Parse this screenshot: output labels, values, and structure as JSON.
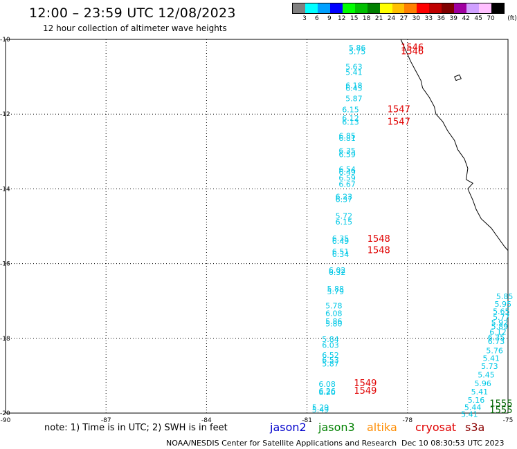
{
  "header": {
    "title": "12:00 – 23:59 UTC 12/08/2023",
    "subtitle": "12 hour collection of altimeter wave heights"
  },
  "legend": {
    "unit": "(ft)",
    "bins": [
      {
        "label": "3",
        "color": "#808080"
      },
      {
        "label": "6",
        "color": "#00ffff"
      },
      {
        "label": "9",
        "color": "#00a0ff"
      },
      {
        "label": "12",
        "color": "#0000ff"
      },
      {
        "label": "15",
        "color": "#00ff00"
      },
      {
        "label": "18",
        "color": "#00c000"
      },
      {
        "label": "21",
        "color": "#008000"
      },
      {
        "label": "24",
        "color": "#ffff00"
      },
      {
        "label": "27",
        "color": "#ffc000"
      },
      {
        "label": "30",
        "color": "#ff8000"
      },
      {
        "label": "33",
        "color": "#ff0000"
      },
      {
        "label": "36",
        "color": "#c00000"
      },
      {
        "label": "39",
        "color": "#800000"
      },
      {
        "label": "42",
        "color": "#a000a0"
      },
      {
        "label": "45",
        "color": "#d0a0ff"
      },
      {
        "label": "70",
        "color": "#ffc0ff"
      },
      {
        "label": "",
        "color": "#000000"
      }
    ]
  },
  "axes": {
    "lat_labels": [
      "-10",
      "-12",
      "-14",
      "-16",
      "-18",
      "-20"
    ],
    "lon_labels": [
      "-90",
      "-87",
      "-84",
      "-81",
      "-78",
      "-75"
    ],
    "lat_values": [
      -10,
      -12,
      -14,
      -16,
      -18,
      -20
    ],
    "lon_values": [
      -90,
      -87,
      -84,
      -81,
      -78,
      -75
    ]
  },
  "map_data": {
    "extent": {
      "lon": [
        -90,
        -75
      ],
      "lat": [
        -20,
        -10
      ]
    },
    "wave_heights": [
      {
        "lon": -79.5,
        "lat": -10.3,
        "text": "5.86"
      },
      {
        "lon": -79.5,
        "lat": -10.4,
        "text": "5.75"
      },
      {
        "lon": -79.6,
        "lat": -10.8,
        "text": "5.63"
      },
      {
        "lon": -79.6,
        "lat": -10.95,
        "text": "5.41"
      },
      {
        "lon": -79.6,
        "lat": -11.3,
        "text": "6.18"
      },
      {
        "lon": -79.6,
        "lat": -11.38,
        "text": "6.45"
      },
      {
        "lon": -79.6,
        "lat": -11.65,
        "text": "5.87"
      },
      {
        "lon": -79.7,
        "lat": -11.95,
        "text": "6.15"
      },
      {
        "lon": -79.7,
        "lat": -12.18,
        "text": "6.12"
      },
      {
        "lon": -79.7,
        "lat": -12.28,
        "text": "6.13"
      },
      {
        "lon": -79.8,
        "lat": -12.65,
        "text": "6.85"
      },
      {
        "lon": -79.8,
        "lat": -12.72,
        "text": "6.81"
      },
      {
        "lon": -79.8,
        "lat": -13.05,
        "text": "6.35"
      },
      {
        "lon": -79.8,
        "lat": -13.15,
        "text": "6.59"
      },
      {
        "lon": -79.8,
        "lat": -13.55,
        "text": "6.54"
      },
      {
        "lon": -79.8,
        "lat": -13.62,
        "text": "6.49"
      },
      {
        "lon": -79.8,
        "lat": -13.78,
        "text": "6.59"
      },
      {
        "lon": -79.8,
        "lat": -13.95,
        "text": "6.67"
      },
      {
        "lon": -79.9,
        "lat": -14.28,
        "text": "6.23"
      },
      {
        "lon": -79.9,
        "lat": -14.35,
        "text": "6.37"
      },
      {
        "lon": -79.9,
        "lat": -14.8,
        "text": "5.72"
      },
      {
        "lon": -79.9,
        "lat": -14.95,
        "text": "6.15"
      },
      {
        "lon": -80.0,
        "lat": -15.4,
        "text": "6.35"
      },
      {
        "lon": -80.0,
        "lat": -15.47,
        "text": "6.49"
      },
      {
        "lon": -80.0,
        "lat": -15.75,
        "text": "6.51"
      },
      {
        "lon": -80.0,
        "lat": -15.82,
        "text": "6.34"
      },
      {
        "lon": -80.1,
        "lat": -16.25,
        "text": "6.02"
      },
      {
        "lon": -80.1,
        "lat": -16.3,
        "text": "6.32"
      },
      {
        "lon": -80.15,
        "lat": -16.75,
        "text": "5.88"
      },
      {
        "lon": -80.15,
        "lat": -16.82,
        "text": "5.79"
      },
      {
        "lon": -80.2,
        "lat": -17.2,
        "text": "5.78"
      },
      {
        "lon": -80.2,
        "lat": -17.4,
        "text": "6.08"
      },
      {
        "lon": -80.2,
        "lat": -17.62,
        "text": "5.86"
      },
      {
        "lon": -80.2,
        "lat": -17.68,
        "text": "5.80"
      },
      {
        "lon": -80.3,
        "lat": -18.1,
        "text": "5.84"
      },
      {
        "lon": -80.3,
        "lat": -18.25,
        "text": "6.03"
      },
      {
        "lon": -80.3,
        "lat": -18.52,
        "text": "6.52"
      },
      {
        "lon": -80.3,
        "lat": -18.65,
        "text": "6.53"
      },
      {
        "lon": -80.3,
        "lat": -18.75,
        "text": "5.87"
      },
      {
        "lon": -80.4,
        "lat": -19.3,
        "text": "6.08"
      },
      {
        "lon": -80.4,
        "lat": -19.48,
        "text": "6.26"
      },
      {
        "lon": -80.4,
        "lat": -19.52,
        "text": "6.20"
      },
      {
        "lon": -80.6,
        "lat": -19.92,
        "text": "5.29"
      },
      {
        "lon": -80.6,
        "lat": -19.98,
        "text": "5.49"
      },
      {
        "lon": -75.1,
        "lat": -16.95,
        "text": "5.85"
      },
      {
        "lon": -75.15,
        "lat": -17.15,
        "text": "5.95"
      },
      {
        "lon": -75.2,
        "lat": -17.35,
        "text": "5.65"
      },
      {
        "lon": -75.2,
        "lat": -17.5,
        "text": "5.77"
      },
      {
        "lon": -75.25,
        "lat": -17.65,
        "text": "5.92"
      },
      {
        "lon": -75.25,
        "lat": -17.75,
        "text": "5.89"
      },
      {
        "lon": -75.3,
        "lat": -17.9,
        "text": "6.12"
      },
      {
        "lon": -75.35,
        "lat": -18.05,
        "text": "6.35"
      },
      {
        "lon": -75.35,
        "lat": -18.15,
        "text": "6.73"
      },
      {
        "lon": -75.4,
        "lat": -18.4,
        "text": "5.76"
      },
      {
        "lon": -75.5,
        "lat": -18.6,
        "text": "5.41"
      },
      {
        "lon": -75.55,
        "lat": -18.82,
        "text": "5.73"
      },
      {
        "lon": -75.65,
        "lat": -19.05,
        "text": "5.45"
      },
      {
        "lon": -75.75,
        "lat": -19.28,
        "text": "5.96"
      },
      {
        "lon": -75.85,
        "lat": -19.5,
        "text": "5.41"
      },
      {
        "lon": -75.95,
        "lat": -19.72,
        "text": "5.16"
      },
      {
        "lon": -76.05,
        "lat": -19.92,
        "text": "5.44"
      },
      {
        "lon": -76.15,
        "lat": -20.1,
        "text": "5.41"
      }
    ],
    "times": [
      {
        "lon": -78.2,
        "lat": -10.3,
        "text": "1546",
        "color": "#e00000"
      },
      {
        "lon": -78.2,
        "lat": -10.4,
        "text": "1546",
        "color": "#e00000"
      },
      {
        "lon": -78.6,
        "lat": -11.95,
        "text": "1547",
        "color": "#e00000"
      },
      {
        "lon": -78.6,
        "lat": -12.28,
        "text": "1547",
        "color": "#e00000"
      },
      {
        "lon": -79.2,
        "lat": -15.42,
        "text": "1548",
        "color": "#e00000"
      },
      {
        "lon": -79.2,
        "lat": -15.72,
        "text": "1548",
        "color": "#e00000"
      },
      {
        "lon": -79.6,
        "lat": -19.28,
        "text": "1549",
        "color": "#e00000"
      },
      {
        "lon": -79.6,
        "lat": -19.48,
        "text": "1549",
        "color": "#e00000"
      },
      {
        "lon": -75.55,
        "lat": -19.82,
        "text": "1555",
        "color": "#006400"
      },
      {
        "lon": -75.55,
        "lat": -20.0,
        "text": "1555",
        "color": "#006400"
      }
    ],
    "coastline": [
      [
        -78.2,
        -10.0
      ],
      [
        -78.05,
        -10.3
      ],
      [
        -77.9,
        -10.6
      ],
      [
        -77.75,
        -10.85
      ],
      [
        -77.6,
        -11.1
      ],
      [
        -77.55,
        -11.3
      ],
      [
        -77.35,
        -11.55
      ],
      [
        -77.2,
        -11.8
      ],
      [
        -77.15,
        -12.0
      ],
      [
        -76.95,
        -12.2
      ],
      [
        -76.8,
        -12.45
      ],
      [
        -76.6,
        -12.7
      ],
      [
        -76.5,
        -12.95
      ],
      [
        -76.3,
        -13.2
      ],
      [
        -76.2,
        -13.45
      ],
      [
        -76.25,
        -13.75
      ],
      [
        -76.05,
        -13.85
      ],
      [
        -76.2,
        -14.0
      ],
      [
        -76.05,
        -14.3
      ],
      [
        -75.95,
        -14.55
      ],
      [
        -75.8,
        -14.8
      ],
      [
        -75.5,
        -15.05
      ],
      [
        -75.3,
        -15.3
      ],
      [
        -75.1,
        -15.55
      ],
      [
        -75.0,
        -15.65
      ]
    ],
    "islands": [
      [
        [
          -76.6,
          -11.0
        ],
        [
          -76.45,
          -10.95
        ],
        [
          -76.4,
          -11.05
        ],
        [
          -76.55,
          -11.1
        ],
        [
          -76.6,
          -11.0
        ]
      ]
    ]
  },
  "footer": {
    "note": "note:  1) Time is in UTC;  2) SWH is in feet",
    "satellites": [
      {
        "name": "jason2",
        "color": "#0000cc"
      },
      {
        "name": "jason3",
        "color": "#008000"
      },
      {
        "name": "altika",
        "color": "#ff8c00"
      },
      {
        "name": "cryosat",
        "color": "#e00000"
      },
      {
        "name": "s3a",
        "color": "#8b0000"
      }
    ],
    "credit": "NOAA/NESDIS Center for Satellite Applications and Research",
    "timestamp": "Dec 10 08:30:53 UTC 2023"
  }
}
